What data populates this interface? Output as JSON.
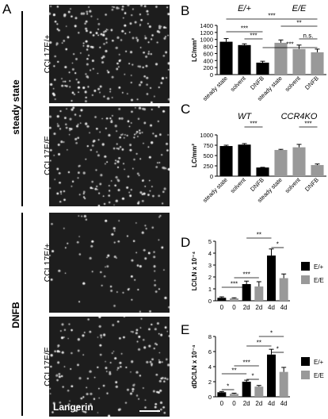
{
  "figure": {
    "panel_A": {
      "letter": "A",
      "group_steady": "steady state",
      "group_dnfb": "DNFB",
      "image_labels": [
        "CCL17E/+",
        "CCL17E/E",
        "CCL17E/+",
        "CCL17E/E"
      ],
      "stain_label": "Langerin"
    }
  },
  "chart_data": [
    {
      "panel": "B",
      "type": "bar",
      "group_labels": [
        "E/+",
        "E/E"
      ],
      "categories": [
        "steady state",
        "solvent",
        "DNFB",
        "steady state",
        "solvent",
        "DNFB"
      ],
      "values": [
        935,
        840,
        340,
        905,
        730,
        635
      ],
      "errors": [
        90,
        35,
        40,
        80,
        110,
        90
      ],
      "colors": [
        "#000000",
        "#000000",
        "#000000",
        "#999999",
        "#999999",
        "#999999"
      ],
      "ylabel": "LC/mm²",
      "ylim": [
        0,
        1400
      ],
      "yticks": [
        "0",
        "200",
        "400",
        "600",
        "800",
        "1000",
        "1200",
        "1400"
      ],
      "significance": [
        "***",
        "***",
        "***",
        "**",
        "n.s.",
        "***"
      ]
    },
    {
      "panel": "C",
      "type": "bar",
      "group_labels": [
        "WT",
        "CCR4KO"
      ],
      "categories": [
        "steady state",
        "solvent",
        "DNFB",
        "steady state",
        "solvent",
        "DNFB"
      ],
      "values": [
        730,
        765,
        210,
        635,
        700,
        270
      ],
      "errors": [
        20,
        25,
        5,
        15,
        70,
        25
      ],
      "colors": [
        "#000000",
        "#000000",
        "#000000",
        "#999999",
        "#999999",
        "#999999"
      ],
      "ylabel": "LC/mm²",
      "ylim": [
        0,
        1000
      ],
      "yticks": [
        "0",
        "250",
        "500",
        "750",
        "1000"
      ],
      "significance": [
        "***",
        "***"
      ]
    },
    {
      "panel": "D",
      "type": "bar",
      "categories": [
        "0",
        "0",
        "2d",
        "2d",
        "4d",
        "4d"
      ],
      "values": [
        0.25,
        0.2,
        1.4,
        1.2,
        3.8,
        1.9
      ],
      "errors": [
        0.08,
        0.05,
        0.25,
        0.4,
        0.55,
        0.35
      ],
      "colors": [
        "#000000",
        "#999999",
        "#000000",
        "#999999",
        "#000000",
        "#999999"
      ],
      "ylabel": "LC/LN x 10⁻⁴",
      "ylim": [
        0,
        5
      ],
      "yticks": [
        "0",
        "1",
        "2",
        "3",
        "4",
        "5"
      ],
      "legend": [
        "E/+",
        "E/E"
      ],
      "significance": [
        "***",
        "***",
        "**",
        "*"
      ]
    },
    {
      "panel": "E",
      "type": "bar",
      "categories": [
        "0",
        "0",
        "2d",
        "2d",
        "4d",
        "4d"
      ],
      "values": [
        0.6,
        0.4,
        2.0,
        1.35,
        5.6,
        3.3
      ],
      "errors": [
        0.1,
        0.08,
        0.2,
        0.15,
        0.7,
        0.6
      ],
      "colors": [
        "#000000",
        "#999999",
        "#000000",
        "#999999",
        "#000000",
        "#999999"
      ],
      "ylabel": "dDC/LN x 10⁻⁴",
      "ylim": [
        0,
        8
      ],
      "yticks": [
        "0",
        "2",
        "4",
        "6",
        "8"
      ],
      "legend": [
        "E/+",
        "E/E"
      ],
      "significance": [
        "*",
        "**",
        "*",
        "***",
        "**",
        "*",
        "*"
      ]
    }
  ]
}
